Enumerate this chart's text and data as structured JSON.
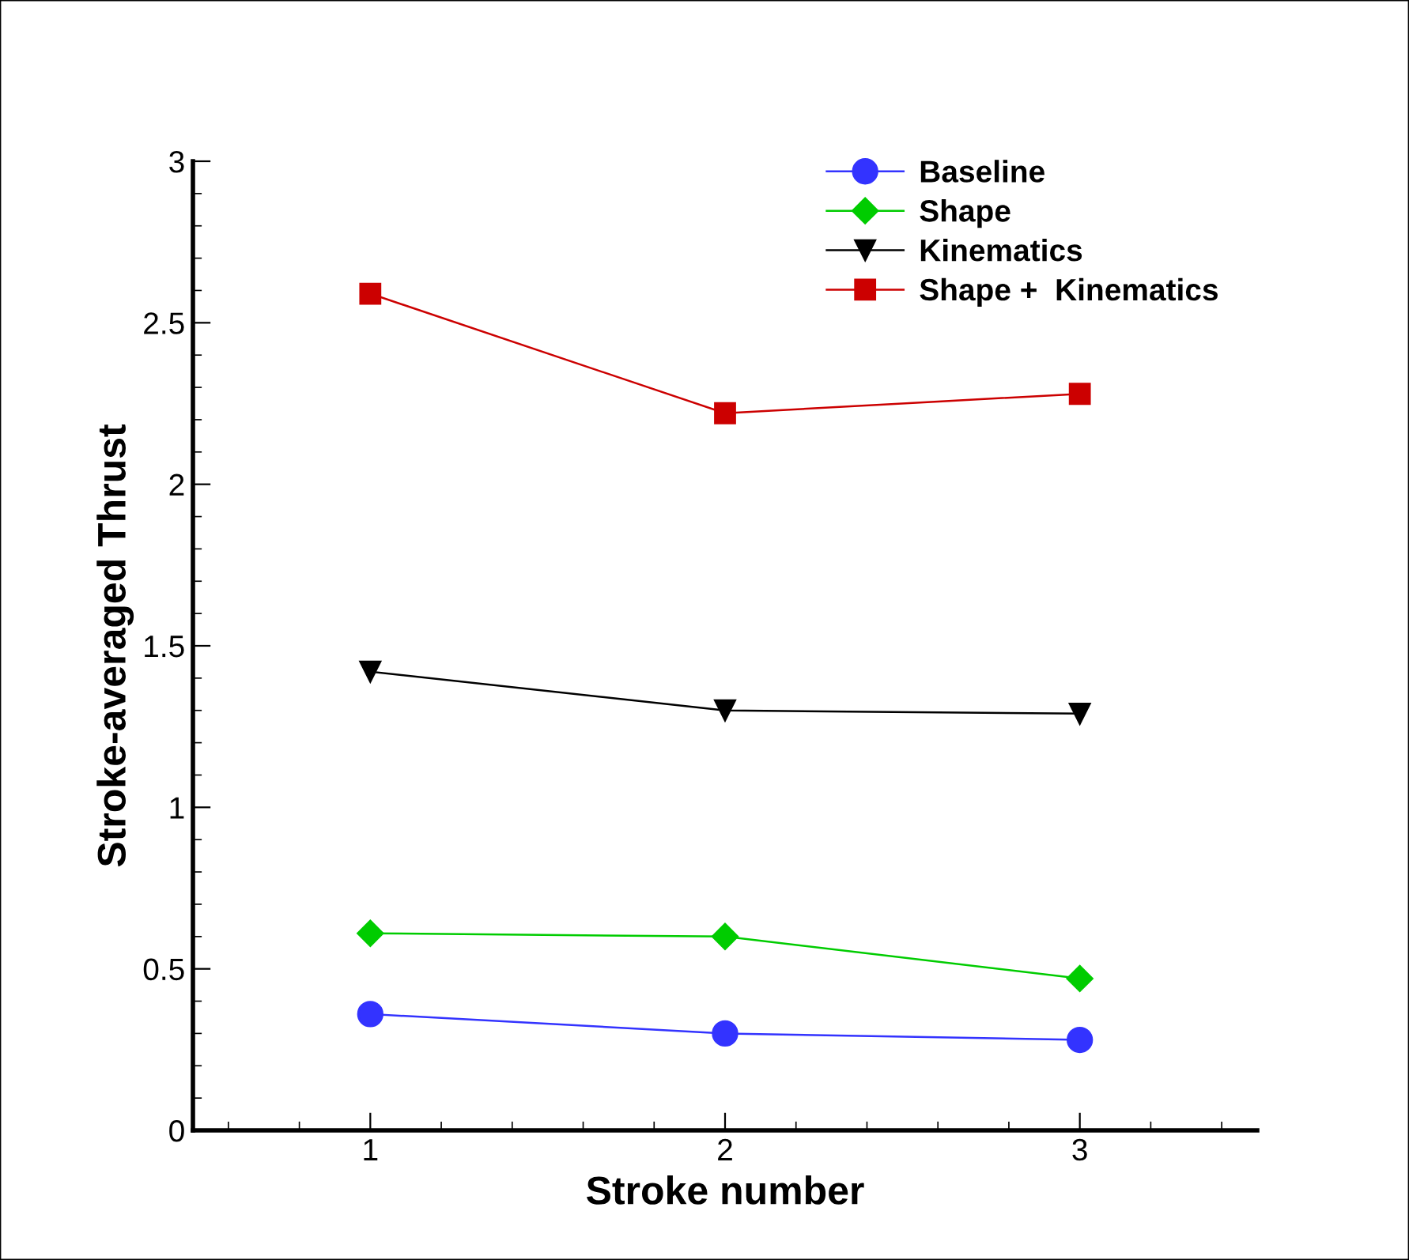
{
  "chart_data": {
    "type": "line",
    "xlabel": "Stroke number",
    "ylabel": "Stroke-averaged Thrust",
    "x": [
      1,
      2,
      3
    ],
    "xlim": [
      0.5,
      3.5
    ],
    "xticks": [
      1,
      2,
      3
    ],
    "ylim": [
      0,
      3
    ],
    "yticks": [
      0,
      0.5,
      1,
      1.5,
      2,
      2.5,
      3
    ],
    "legend": "top right",
    "grid": false,
    "series": [
      {
        "name": "Baseline",
        "color": "#3333ff",
        "marker": "circle",
        "values": [
          0.36,
          0.3,
          0.28
        ]
      },
      {
        "name": "Shape",
        "color": "#00cc00",
        "marker": "diamond",
        "values": [
          0.61,
          0.6,
          0.47
        ]
      },
      {
        "name": "Kinematics",
        "color": "#000000",
        "marker": "triangle",
        "values": [
          1.42,
          1.3,
          1.29
        ]
      },
      {
        "name": "Shape +  Kinematics",
        "color": "#cc0000",
        "marker": "square",
        "values": [
          2.59,
          2.22,
          2.28
        ]
      }
    ]
  }
}
